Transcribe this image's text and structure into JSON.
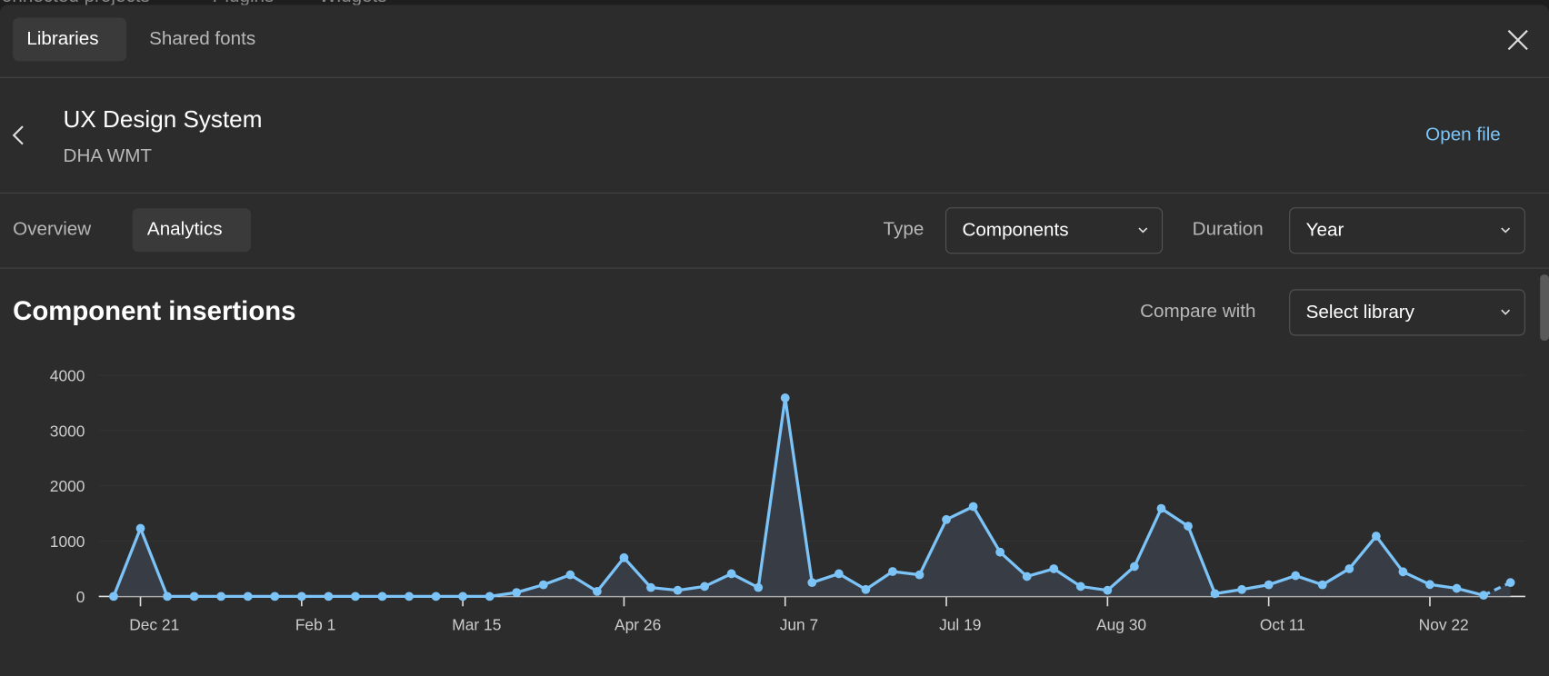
{
  "background_tabs": [
    "Connected projects",
    "Plugins",
    "Widgets"
  ],
  "header": {
    "tabs": [
      "Libraries",
      "Shared fonts"
    ]
  },
  "library": {
    "name": "UX Design System",
    "team": "DHA WMT",
    "action": "Open file"
  },
  "subnav": {
    "tabs": [
      "Overview",
      "Analytics"
    ],
    "type_label": "Type",
    "type_value": "Components",
    "duration_label": "Duration",
    "duration_value": "Year"
  },
  "compare": {
    "label": "Compare with",
    "value": "Select library"
  },
  "chart_data": {
    "type": "line",
    "title": "Component insertions",
    "categories": [
      null,
      "Dec 21",
      null,
      null,
      null,
      null,
      null,
      "Feb 1",
      null,
      null,
      null,
      null,
      null,
      "Mar 15",
      null,
      null,
      null,
      null,
      null,
      "Apr 26",
      null,
      null,
      null,
      null,
      null,
      "Jun 7",
      null,
      null,
      null,
      null,
      null,
      "Jul 19",
      null,
      null,
      null,
      null,
      null,
      "Aug 30",
      null,
      null,
      null,
      null,
      null,
      "Oct 11",
      null,
      null,
      null,
      null,
      null,
      "Nov 22",
      null,
      null,
      null
    ],
    "values": [
      0,
      1230,
      0,
      0,
      0,
      0,
      0,
      0,
      0,
      0,
      0,
      0,
      0,
      0,
      0,
      70,
      210,
      390,
      90,
      700,
      160,
      110,
      180,
      410,
      160,
      3590,
      250,
      410,
      125,
      450,
      390,
      1390,
      1625,
      800,
      360,
      500,
      180,
      110,
      540,
      1590,
      1270,
      50,
      125,
      210,
      375,
      210,
      500,
      1090,
      445,
      215,
      145,
      20,
      250
    ],
    "color": "#7cc4f8",
    "dashed_last_segment": true,
    "ylim": [
      0,
      4000
    ],
    "yticks": [
      0,
      1000,
      2000,
      3000,
      4000
    ],
    "grid": true
  }
}
